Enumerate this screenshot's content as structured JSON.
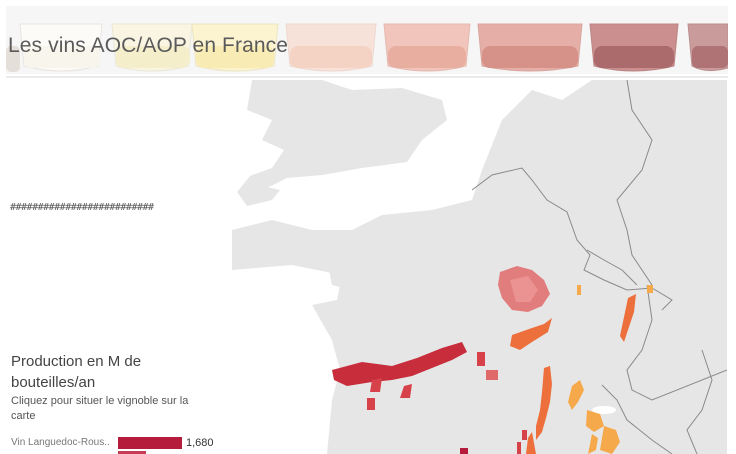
{
  "banner": {
    "title": "Les vins AOC/AOP en France"
  },
  "left_panel": {
    "hash_text": "##########################",
    "legend_title": "Production en M de bouteilles/an",
    "legend_subtitle": "Cliquez pour situer le vignoble sur la carte",
    "bars": [
      {
        "label": "Vin Languedoc-Rous..",
        "value": 1680,
        "value_label": "1,680",
        "fraction": 1.0
      }
    ]
  },
  "colors": {
    "accent_dark_red": "#b51c3b",
    "region_red": "#d7424a",
    "region_orange": "#ec6f3c",
    "region_light_orange": "#f6a94a",
    "map_land": "#e6e6e6",
    "map_water": "#ffffff",
    "border": "#8a8a8a"
  }
}
